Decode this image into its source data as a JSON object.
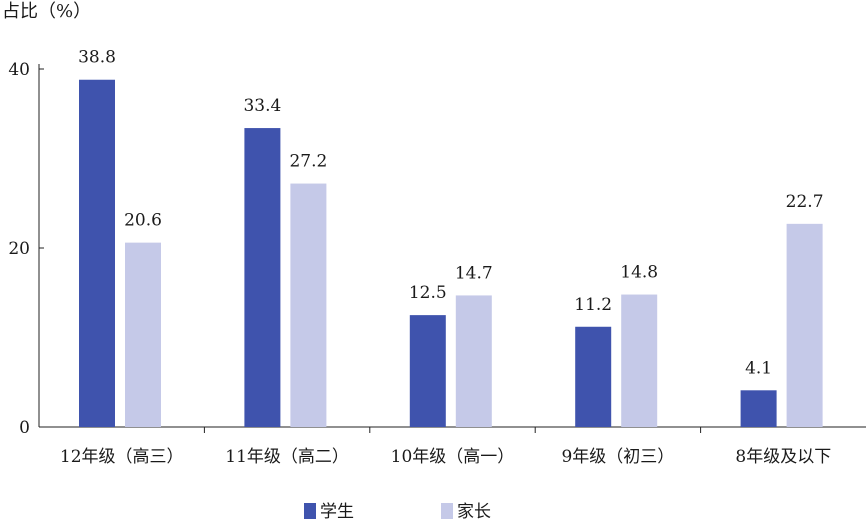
{
  "chart_data": {
    "type": "bar",
    "ylabel": "占比（%）",
    "ylim": [
      0,
      40
    ],
    "yticks": [
      0,
      20,
      40
    ],
    "categories": [
      "12年级（高三）",
      "11年级（高二）",
      "10年级（高一）",
      "9年级（初三）",
      "8年级及以下"
    ],
    "series": [
      {
        "name": "学生",
        "values": [
          38.8,
          33.4,
          12.5,
          11.2,
          4.1
        ],
        "color": "#3f53ad"
      },
      {
        "name": "家长",
        "values": [
          20.6,
          27.2,
          14.7,
          14.8,
          22.7
        ],
        "color": "#c5c9e8"
      }
    ],
    "legend_position": "bottom",
    "grid": false
  }
}
